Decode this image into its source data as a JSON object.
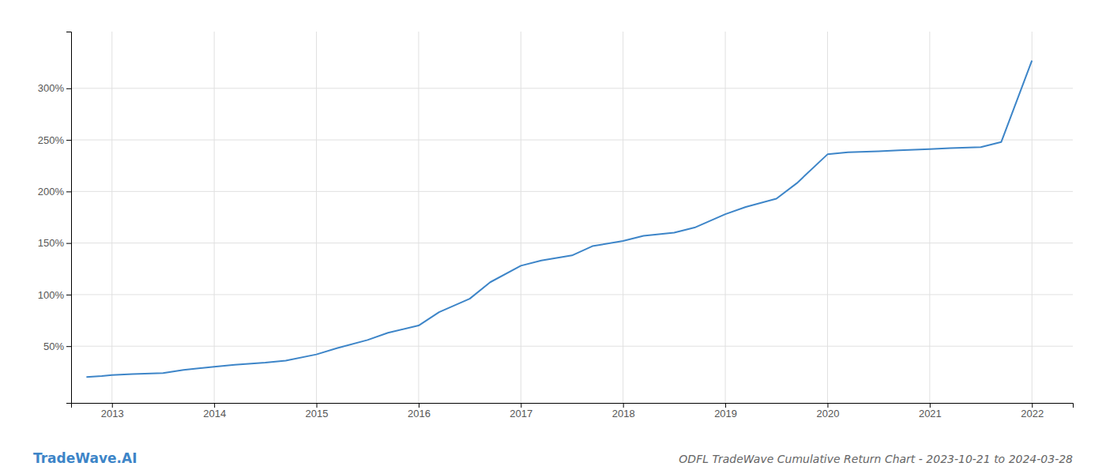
{
  "chart_data": {
    "type": "line",
    "title": "ODFL TradeWave Cumulative Return Chart - 2023-10-21 to 2024-03-28",
    "annotations": [
      "TradeWave.AI"
    ],
    "x": [
      2012.75,
      2012.9,
      2013.0,
      2013.2,
      2013.5,
      2013.7,
      2014.0,
      2014.2,
      2014.5,
      2014.7,
      2015.0,
      2015.2,
      2015.5,
      2015.7,
      2016.0,
      2016.2,
      2016.5,
      2016.7,
      2017.0,
      2017.2,
      2017.5,
      2017.7,
      2018.0,
      2018.2,
      2018.5,
      2018.7,
      2019.0,
      2019.2,
      2019.5,
      2019.7,
      2020.0,
      2020.2,
      2020.5,
      2020.7,
      2021.0,
      2021.2,
      2021.5,
      2021.7,
      2022.0
    ],
    "values": [
      20,
      21,
      22,
      23,
      24,
      27,
      30,
      32,
      34,
      36,
      42,
      48,
      56,
      63,
      70,
      83,
      96,
      112,
      128,
      133,
      138,
      147,
      152,
      157,
      160,
      165,
      178,
      185,
      193,
      208,
      236,
      238,
      239,
      240,
      241,
      242,
      243,
      248,
      327
    ],
    "color": "#3d85c8",
    "xlim": [
      2012.6,
      2022.4
    ],
    "xticks": [
      2013,
      2014,
      2015,
      2016,
      2017,
      2018,
      2019,
      2020,
      2021,
      2022
    ],
    "ylim": [
      -5,
      355
    ],
    "yticks": [
      {
        "value": 50,
        "label": "50%"
      },
      {
        "value": 100,
        "label": "100%"
      },
      {
        "value": 150,
        "label": "150%"
      },
      {
        "value": 200,
        "label": "200%"
      },
      {
        "value": 250,
        "label": "250%"
      },
      {
        "value": 300,
        "label": "300%"
      }
    ],
    "grid": true
  }
}
